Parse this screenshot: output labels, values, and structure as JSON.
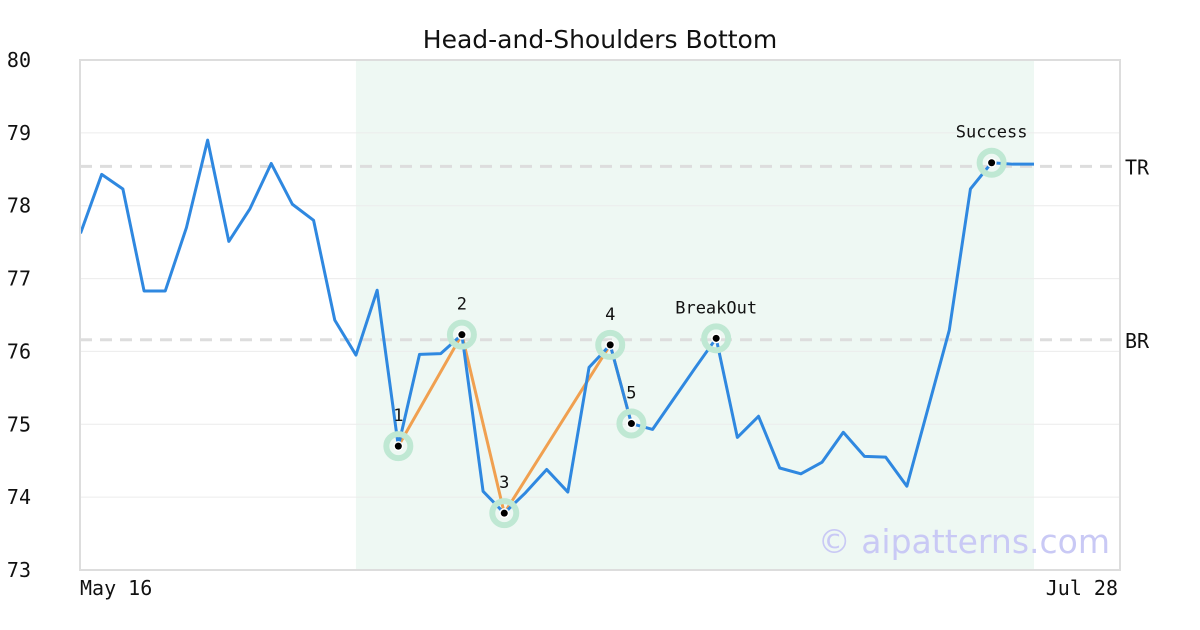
{
  "chart_data": {
    "type": "line",
    "title": "Head-and-Shoulders Bottom",
    "ylim": [
      73,
      80
    ],
    "y_ticks": [
      "73",
      "74",
      "75",
      "76",
      "77",
      "78",
      "79",
      "80"
    ],
    "x_tick_labels": [
      "May 16",
      "Jul 28"
    ],
    "grid": "horizontal",
    "watermark": "© aipatterns.com",
    "colors": {
      "price": "#2f88e0",
      "pattern": "#f0a050",
      "highlight": "#eef8f3",
      "marker_halo": "#bfe8d3",
      "level": "#dddddd"
    },
    "series": [
      {
        "values": [
          77.62,
          78.43,
          78.23,
          76.83,
          76.83,
          77.7,
          78.9,
          77.51,
          77.96,
          78.58,
          78.02,
          77.8,
          76.43,
          75.95,
          76.84,
          74.7,
          75.96,
          75.97,
          76.23,
          74.08,
          73.78,
          74.06,
          74.38,
          74.07,
          75.78,
          76.09,
          75.01,
          74.93,
          75.35,
          75.77,
          76.18,
          74.82,
          75.11,
          74.4,
          74.32,
          74.48,
          74.89,
          74.56,
          74.55,
          74.15,
          75.22,
          76.29,
          78.23,
          78.59,
          78.57,
          78.57
        ]
      }
    ],
    "highlight_range": [
      13,
      45
    ],
    "levels": [
      {
        "label": "TR",
        "value": 78.54
      },
      {
        "label": "BR",
        "value": 76.16
      }
    ],
    "pattern_line_indices": [
      15,
      18,
      20,
      25,
      26
    ],
    "points": [
      {
        "label": "1",
        "index": 15,
        "value": 74.7
      },
      {
        "label": "2",
        "index": 18,
        "value": 76.23
      },
      {
        "label": "3",
        "index": 20,
        "value": 73.78
      },
      {
        "label": "4",
        "index": 25,
        "value": 76.09
      },
      {
        "label": "5",
        "index": 26,
        "value": 75.01
      },
      {
        "label": "BreakOut",
        "index": 30,
        "value": 76.18
      },
      {
        "label": "Success",
        "index": 43,
        "value": 78.59
      }
    ]
  }
}
